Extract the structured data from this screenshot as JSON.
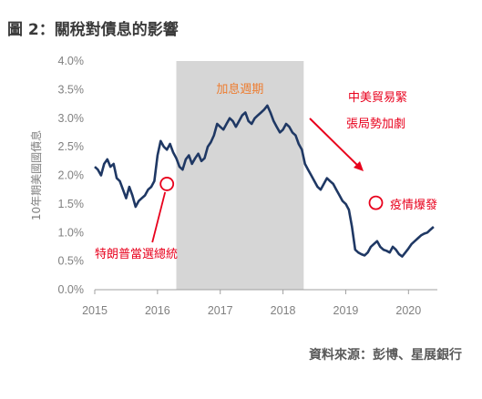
{
  "title": "圖 2：關稅對債息的影響",
  "source": "資料來源：彭博、星展銀行",
  "chart_data": {
    "type": "line",
    "ylabel": "10年期美國國債息",
    "ylim": [
      0,
      4.0
    ],
    "yticks": [
      "0.0%",
      "0.5%",
      "1.0%",
      "1.5%",
      "2.0%",
      "2.5%",
      "3.0%",
      "3.5%",
      "4.0%"
    ],
    "xlim": [
      2015.0,
      2020.6
    ],
    "xticks": [
      "2015",
      "2016",
      "2017",
      "2018",
      "2019",
      "2020"
    ],
    "line_color": "#1f3864",
    "band_color": "#d6d6d6",
    "annotation_color": "#e8001c",
    "orange_color": "#ed7d31",
    "shaded_period": {
      "label": "加息週期",
      "start": 2016.3,
      "end": 2018.33
    },
    "annotations": [
      {
        "label": "特朗普當選總統",
        "x": 2016.15,
        "y": 1.85
      },
      {
        "label": "中美貿易緊",
        "label2": "張局勢加劇",
        "x": 2019.3,
        "y": 2.0
      },
      {
        "label": "疫情爆發",
        "x": 2019.48,
        "y": 1.52
      }
    ],
    "series": [
      {
        "x": [
          2015.0,
          2015.05,
          2015.1,
          2015.15,
          2015.2,
          2015.25,
          2015.3,
          2015.35,
          2015.4,
          2015.45,
          2015.5,
          2015.55,
          2015.6,
          2015.65,
          2015.7,
          2015.75,
          2015.8,
          2015.85,
          2015.9,
          2015.95,
          2016.0,
          2016.05,
          2016.1,
          2016.15,
          2016.2,
          2016.25,
          2016.3,
          2016.35,
          2016.4,
          2016.45,
          2016.5,
          2016.55,
          2016.6,
          2016.65,
          2016.7,
          2016.75,
          2016.8,
          2016.85,
          2016.9,
          2016.95,
          2017.0,
          2017.05,
          2017.1,
          2017.15,
          2017.2,
          2017.25,
          2017.3,
          2017.35,
          2017.4,
          2017.45,
          2017.5,
          2017.55,
          2017.6,
          2017.65,
          2017.7,
          2017.75,
          2017.8,
          2017.85,
          2017.9,
          2017.95,
          2018.0,
          2018.05,
          2018.1,
          2018.15,
          2018.2,
          2018.25,
          2018.3,
          2018.35,
          2018.4,
          2018.45,
          2018.5,
          2018.55,
          2018.6,
          2018.65,
          2018.7,
          2018.75,
          2018.8,
          2018.85,
          2018.9,
          2018.95,
          2019.0,
          2019.05,
          2019.1,
          2019.15,
          2019.2,
          2019.25,
          2019.3,
          2019.35,
          2019.4,
          2019.45,
          2019.5,
          2019.55,
          2019.6,
          2019.65,
          2019.7,
          2019.75,
          2019.8,
          2019.85,
          2019.9,
          2019.95,
          2020.0,
          2020.05,
          2020.1,
          2020.15,
          2020.2,
          2020.25,
          2020.3,
          2020.35,
          2020.4
        ],
        "y": [
          2.15,
          2.1,
          2.0,
          2.2,
          2.28,
          2.15,
          2.2,
          1.95,
          1.9,
          1.75,
          1.6,
          1.8,
          1.65,
          1.45,
          1.55,
          1.6,
          1.65,
          1.75,
          1.8,
          1.9,
          2.35,
          2.6,
          2.5,
          2.45,
          2.55,
          2.4,
          2.3,
          2.15,
          2.1,
          2.28,
          2.35,
          2.2,
          2.3,
          2.38,
          2.25,
          2.3,
          2.5,
          2.58,
          2.7,
          2.9,
          2.85,
          2.8,
          2.9,
          3.0,
          2.95,
          2.85,
          2.95,
          3.05,
          3.1,
          2.95,
          2.9,
          3.0,
          3.05,
          3.1,
          3.15,
          3.22,
          3.1,
          2.95,
          2.85,
          2.75,
          2.8,
          2.9,
          2.85,
          2.75,
          2.7,
          2.55,
          2.45,
          2.2,
          2.1,
          2.0,
          1.9,
          1.8,
          1.75,
          1.85,
          1.95,
          1.9,
          1.85,
          1.75,
          1.65,
          1.55,
          1.5,
          1.4,
          1.1,
          0.7,
          0.65,
          0.62,
          0.6,
          0.65,
          0.75,
          0.8,
          0.85,
          0.75,
          0.7,
          0.68,
          0.65,
          0.75,
          0.7,
          0.62,
          0.58,
          0.65,
          0.72,
          0.8,
          0.85,
          0.9,
          0.95,
          0.98,
          1.0,
          1.05,
          1.1
        ]
      }
    ]
  }
}
